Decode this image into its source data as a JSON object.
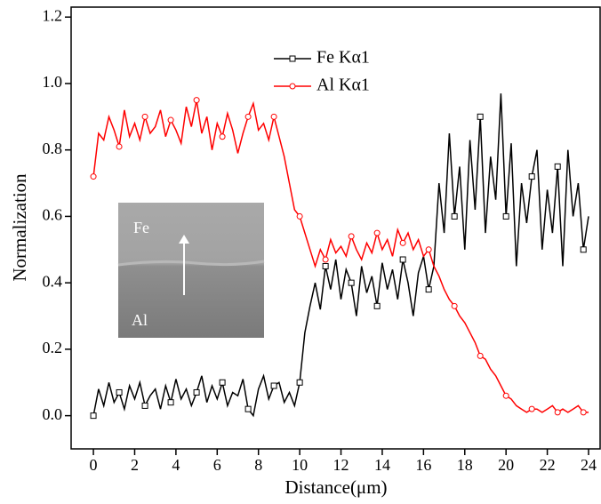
{
  "chart_data": {
    "type": "line",
    "x_label": "Distance(μm)",
    "y_label": "Normalization",
    "xlim": [
      -1.08,
      24.56
    ],
    "ylim": [
      -0.1,
      1.23
    ],
    "xticks": [
      0,
      2,
      4,
      6,
      8,
      10,
      12,
      14,
      16,
      18,
      20,
      22,
      24
    ],
    "yticks": [
      {
        "value": 0,
        "label": "0.0"
      },
      {
        "value": 0.2,
        "label": "0.2"
      },
      {
        "value": 0.4,
        "label": "0.4"
      },
      {
        "value": 0.6,
        "label": "0.6"
      },
      {
        "value": 0.8,
        "label": "0.8"
      },
      {
        "value": 1,
        "label": "1.0"
      },
      {
        "value": 1.2,
        "label": "1.2"
      }
    ],
    "x": [
      0,
      0.25,
      0.5,
      0.75,
      1,
      1.25,
      1.5,
      1.75,
      2,
      2.25,
      2.5,
      2.75,
      3,
      3.25,
      3.5,
      3.75,
      4,
      4.25,
      4.5,
      4.75,
      5,
      5.25,
      5.5,
      5.75,
      6,
      6.25,
      6.5,
      6.75,
      7,
      7.25,
      7.5,
      7.75,
      8,
      8.25,
      8.5,
      8.75,
      9,
      9.25,
      9.5,
      9.75,
      10,
      10.25,
      10.5,
      10.75,
      11,
      11.25,
      11.5,
      11.75,
      12,
      12.25,
      12.5,
      12.75,
      13,
      13.25,
      13.5,
      13.75,
      14,
      14.25,
      14.5,
      14.75,
      15,
      15.25,
      15.5,
      15.75,
      16,
      16.25,
      16.5,
      16.75,
      17,
      17.25,
      17.5,
      17.75,
      18,
      18.25,
      18.5,
      18.75,
      19,
      19.25,
      19.5,
      19.75,
      20,
      20.25,
      20.5,
      20.75,
      21,
      21.25,
      21.5,
      21.75,
      22,
      22.25,
      22.5,
      22.75,
      23,
      23.25,
      23.5,
      23.75,
      24
    ],
    "series": [
      {
        "name": "Fe Kα1",
        "color": "#000000",
        "marker": "square",
        "values": [
          0.0,
          0.08,
          0.03,
          0.1,
          0.04,
          0.07,
          0.02,
          0.09,
          0.05,
          0.1,
          0.03,
          0.06,
          0.08,
          0.02,
          0.09,
          0.04,
          0.11,
          0.05,
          0.08,
          0.03,
          0.07,
          0.12,
          0.04,
          0.09,
          0.05,
          0.1,
          0.03,
          0.07,
          0.06,
          0.11,
          0.02,
          0.0,
          0.08,
          0.12,
          0.05,
          0.09,
          0.1,
          0.04,
          0.07,
          0.03,
          0.1,
          0.25,
          0.33,
          0.4,
          0.32,
          0.45,
          0.38,
          0.47,
          0.35,
          0.44,
          0.4,
          0.3,
          0.45,
          0.37,
          0.42,
          0.33,
          0.46,
          0.38,
          0.44,
          0.35,
          0.47,
          0.4,
          0.3,
          0.43,
          0.48,
          0.38,
          0.45,
          0.7,
          0.55,
          0.85,
          0.6,
          0.75,
          0.5,
          0.83,
          0.62,
          0.9,
          0.55,
          0.78,
          0.65,
          0.97,
          0.6,
          0.82,
          0.45,
          0.7,
          0.58,
          0.72,
          0.8,
          0.5,
          0.68,
          0.55,
          0.75,
          0.45,
          0.8,
          0.6,
          0.7,
          0.5,
          0.6
        ]
      },
      {
        "name": "Al Kα1",
        "color": "#ff0000",
        "marker": "circle",
        "values": [
          0.72,
          0.85,
          0.83,
          0.9,
          0.86,
          0.81,
          0.92,
          0.84,
          0.88,
          0.83,
          0.9,
          0.85,
          0.87,
          0.92,
          0.84,
          0.89,
          0.86,
          0.82,
          0.93,
          0.87,
          0.95,
          0.85,
          0.9,
          0.8,
          0.88,
          0.84,
          0.91,
          0.86,
          0.79,
          0.85,
          0.9,
          0.94,
          0.86,
          0.88,
          0.83,
          0.9,
          0.84,
          0.78,
          0.7,
          0.62,
          0.6,
          0.55,
          0.5,
          0.45,
          0.5,
          0.47,
          0.53,
          0.49,
          0.51,
          0.48,
          0.54,
          0.5,
          0.47,
          0.52,
          0.49,
          0.55,
          0.5,
          0.53,
          0.48,
          0.56,
          0.52,
          0.55,
          0.5,
          0.53,
          0.48,
          0.5,
          0.45,
          0.42,
          0.38,
          0.35,
          0.33,
          0.3,
          0.28,
          0.25,
          0.22,
          0.18,
          0.17,
          0.14,
          0.12,
          0.09,
          0.06,
          0.05,
          0.03,
          0.02,
          0.01,
          0.02,
          0.02,
          0.01,
          0.02,
          0.03,
          0.01,
          0.02,
          0.01,
          0.02,
          0.03,
          0.01,
          0.01
        ]
      }
    ]
  },
  "inset": {
    "top_label": "Fe",
    "bottom_label": "Al"
  }
}
